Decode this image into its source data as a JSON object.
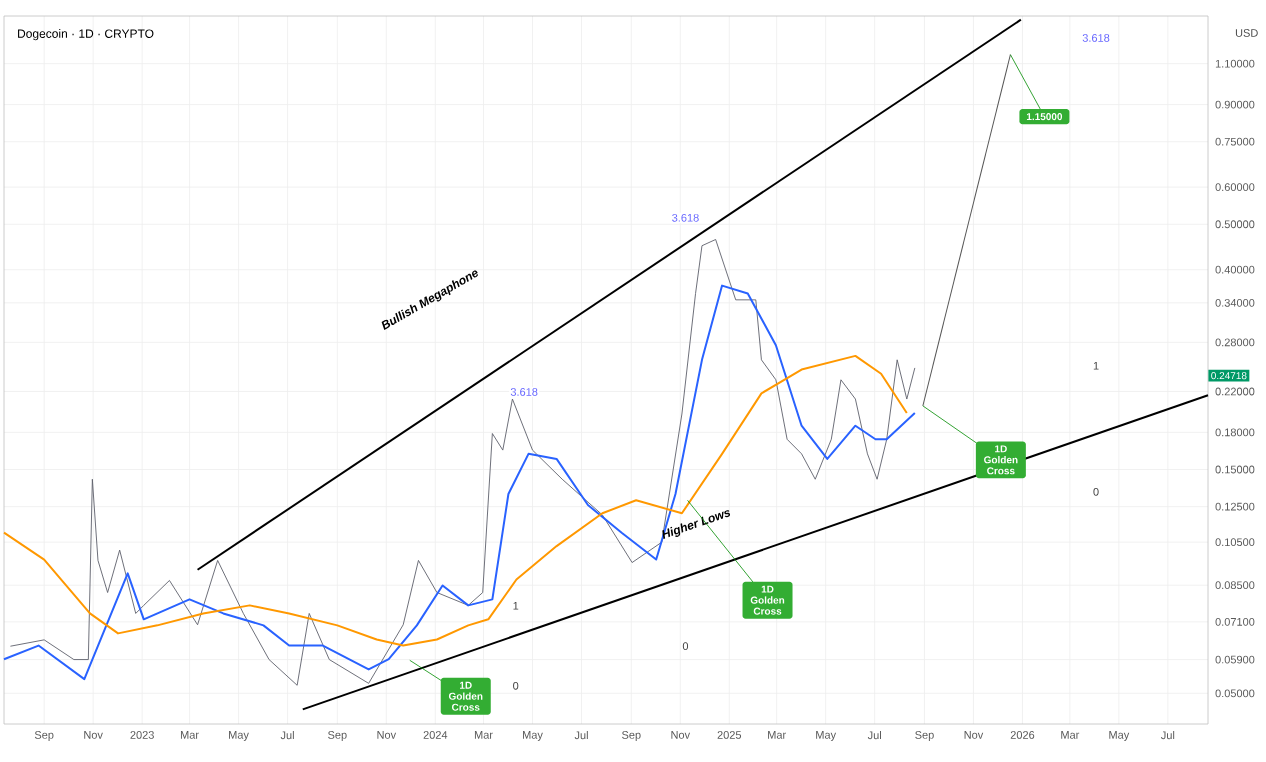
{
  "chart_data": {
    "type": "line",
    "title": "Dogecoin · 1D · CRYPTO",
    "ylabel": "USD",
    "log": "y",
    "grid": true,
    "xlim": [
      "2022-07-13",
      "2026-08-20"
    ],
    "ylim": [
      0.043,
      1.39
    ],
    "xticks": [
      {
        "value": "2022-09-01",
        "label": "Sep"
      },
      {
        "value": "2022-11-01",
        "label": "Nov"
      },
      {
        "value": "2023-01-01",
        "label": "2023"
      },
      {
        "value": "2023-03-01",
        "label": "Mar"
      },
      {
        "value": "2023-05-01",
        "label": "May"
      },
      {
        "value": "2023-07-01",
        "label": "Jul"
      },
      {
        "value": "2023-09-01",
        "label": "Sep"
      },
      {
        "value": "2023-11-01",
        "label": "Nov"
      },
      {
        "value": "2024-01-01",
        "label": "2024"
      },
      {
        "value": "2024-03-01",
        "label": "Mar"
      },
      {
        "value": "2024-05-01",
        "label": "May"
      },
      {
        "value": "2024-07-01",
        "label": "Jul"
      },
      {
        "value": "2024-09-01",
        "label": "Sep"
      },
      {
        "value": "2024-11-01",
        "label": "Nov"
      },
      {
        "value": "2025-01-01",
        "label": "2025"
      },
      {
        "value": "2025-03-01",
        "label": "Mar"
      },
      {
        "value": "2025-05-01",
        "label": "May"
      },
      {
        "value": "2025-07-01",
        "label": "Jul"
      },
      {
        "value": "2025-09-01",
        "label": "Sep"
      },
      {
        "value": "2025-11-01",
        "label": "Nov"
      },
      {
        "value": "2026-01-01",
        "label": "2026"
      },
      {
        "value": "2026-03-01",
        "label": "Mar"
      },
      {
        "value": "2026-05-01",
        "label": "May"
      },
      {
        "value": "2026-07-01",
        "label": "Jul"
      }
    ],
    "yticks": [
      {
        "value": 0.05,
        "label": "0.05000"
      },
      {
        "value": 0.059,
        "label": "0.05900"
      },
      {
        "value": 0.071,
        "label": "0.07100"
      },
      {
        "value": 0.085,
        "label": "0.08500"
      },
      {
        "value": 0.105,
        "label": "0.10500"
      },
      {
        "value": 0.125,
        "label": "0.12500"
      },
      {
        "value": 0.15,
        "label": "0.15000"
      },
      {
        "value": 0.18,
        "label": "0.18000"
      },
      {
        "value": 0.22,
        "label": "0.22000"
      },
      {
        "value": 0.28,
        "label": "0.28000"
      },
      {
        "value": 0.34,
        "label": "0.34000"
      },
      {
        "value": 0.4,
        "label": "0.40000"
      },
      {
        "value": 0.5,
        "label": "0.50000"
      },
      {
        "value": 0.6,
        "label": "0.60000"
      },
      {
        "value": 0.75,
        "label": "0.75000"
      },
      {
        "value": 0.9,
        "label": "0.90000"
      },
      {
        "value": 1.1,
        "label": "1.10000"
      }
    ],
    "series": [
      {
        "color": "#5d606b",
        "x": [
          "2022-07-21",
          "2022-09-01",
          "2022-10-08",
          "2022-10-26",
          "2022-10-31",
          "2022-11-07",
          "2022-11-19",
          "2022-12-04",
          "2022-12-24",
          "2023-01-03",
          "2023-02-04",
          "2023-03-11",
          "2023-04-05",
          "2023-05-07",
          "2023-06-08",
          "2023-07-13",
          "2023-07-28",
          "2023-08-22",
          "2023-10-10",
          "2023-11-22",
          "2023-12-11",
          "2024-01-03",
          "2024-02-11",
          "2024-02-29",
          "2024-03-12",
          "2024-03-25",
          "2024-04-06",
          "2024-05-01",
          "2024-06-07",
          "2024-07-27",
          "2024-09-02",
          "2024-10-09",
          "2024-11-03",
          "2024-11-20",
          "2024-11-28",
          "2024-12-15",
          "2025-01-09",
          "2025-02-03",
          "2025-02-10",
          "2025-02-28",
          "2025-03-14",
          "2025-04-01",
          "2025-04-18",
          "2025-05-08",
          "2025-05-20",
          "2025-06-07",
          "2025-06-22",
          "2025-07-04",
          "2025-07-16",
          "2025-07-29",
          "2025-08-10",
          "2025-08-20"
        ],
        "values": [
          0.063,
          0.065,
          0.059,
          0.059,
          0.143,
          0.096,
          0.082,
          0.101,
          0.074,
          0.077,
          0.087,
          0.07,
          0.096,
          0.074,
          0.059,
          0.052,
          0.074,
          0.059,
          0.0525,
          0.07,
          0.096,
          0.082,
          0.077,
          0.082,
          0.179,
          0.165,
          0.212,
          0.165,
          0.143,
          0.12,
          0.095,
          0.105,
          0.197,
          0.356,
          0.45,
          0.464,
          0.345,
          0.345,
          0.257,
          0.233,
          0.174,
          0.162,
          0.143,
          0.174,
          0.233,
          0.212,
          0.162,
          0.143,
          0.174,
          0.257,
          0.212,
          0.247
        ]
      },
      {
        "color": "#2962ff",
        "x": [
          "2022-07-13",
          "2022-08-25",
          "2022-10-21",
          "2022-12-14",
          "2023-01-03",
          "2023-03-01",
          "2023-04-12",
          "2023-06-01",
          "2023-07-03",
          "2023-08-14",
          "2023-10-10",
          "2023-11-04",
          "2023-12-09",
          "2024-01-10",
          "2024-02-11",
          "2024-03-12",
          "2024-04-01",
          "2024-04-26",
          "2024-05-31",
          "2024-07-09",
          "2024-08-20",
          "2024-10-02",
          "2024-10-26",
          "2024-11-28",
          "2024-12-23",
          "2025-01-24",
          "2025-02-28",
          "2025-04-01",
          "2025-05-03",
          "2025-06-07",
          "2025-07-02",
          "2025-07-16",
          "2025-08-20"
        ],
        "values": [
          0.0591,
          0.0632,
          0.0536,
          0.0901,
          0.0719,
          0.0793,
          0.074,
          0.0698,
          0.0632,
          0.0632,
          0.0562,
          0.0591,
          0.0698,
          0.0849,
          0.077,
          0.0793,
          0.133,
          0.162,
          0.158,
          0.126,
          0.11,
          0.0964,
          0.133,
          0.257,
          0.37,
          0.356,
          0.276,
          0.186,
          0.158,
          0.186,
          0.174,
          0.174,
          0.198
        ]
      },
      {
        "color": "#ff9800",
        "x": [
          "2022-07-13",
          "2022-09-01",
          "2022-10-28",
          "2022-12-02",
          "2023-01-20",
          "2023-03-18",
          "2023-05-15",
          "2023-07-03",
          "2023-09-01",
          "2023-10-20",
          "2023-11-22",
          "2024-01-03",
          "2024-02-11",
          "2024-03-07",
          "2024-04-11",
          "2024-05-31",
          "2024-07-27",
          "2024-09-07",
          "2024-11-03",
          "2024-12-23",
          "2025-02-10",
          "2025-04-01",
          "2025-06-07",
          "2025-07-09",
          "2025-08-10"
        ],
        "values": [
          0.11,
          0.0964,
          0.074,
          0.0671,
          0.0698,
          0.074,
          0.077,
          0.074,
          0.0698,
          0.0651,
          0.0632,
          0.0651,
          0.0698,
          0.0719,
          0.0874,
          0.103,
          0.121,
          0.129,
          0.121,
          0.162,
          0.218,
          0.245,
          0.262,
          0.24,
          0.198
        ]
      },
      {
        "color": "#000000",
        "x": [
          "2023-03-11",
          "2025-12-30"
        ],
        "values": [
          0.0917,
          1.365
        ]
      },
      {
        "color": "#000000",
        "x": [
          "2023-07-20",
          "2026-08-20"
        ],
        "values": [
          0.0462,
          0.216
        ]
      },
      {
        "color": "#555555",
        "x": [
          "2025-08-30",
          "2025-12-17"
        ],
        "values": [
          0.205,
          1.15
        ]
      }
    ],
    "annotations": [
      "Bullish Megaphone",
      "Higher Lows",
      "1D Golden Cross",
      {
        "text": "1D Golden Cross",
        "x": "2024-11-10",
        "y": 0.129
      },
      {
        "text": "1D Golden Cross",
        "x": "2025-08-30",
        "y": 0.205
      },
      {
        "text": "1.15000",
        "x": "2025-12-17",
        "y": 1.15
      },
      "3.618",
      "3.618",
      "3.618",
      "1",
      "0",
      "0",
      "1",
      "0",
      "0.24718"
    ]
  }
}
